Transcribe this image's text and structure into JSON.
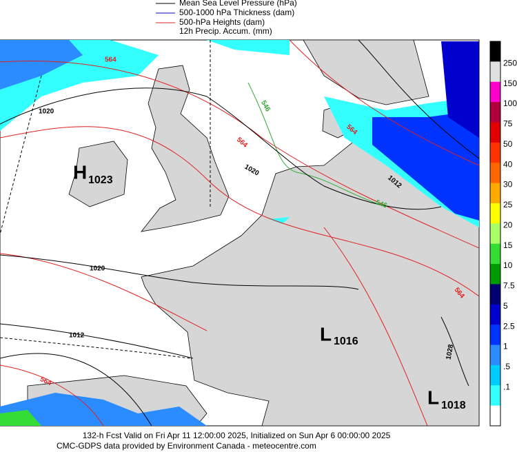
{
  "legend": [
    "Mean Sea Level Pressure (hPa)",
    "500-1000 hPa Thickness (dam)",
    "500-hPa Heights (dam)",
    "12h Precip. Accum. (mm)"
  ],
  "contour_labels": {
    "heights": [
      "564",
      "564",
      "564",
      "564",
      "564"
    ],
    "thickness": [
      "546",
      "546"
    ],
    "pressure": [
      "1020",
      "1020",
      "1020",
      "1012",
      "1012",
      "1028"
    ]
  },
  "centers": [
    {
      "letter": "H",
      "value": "1023"
    },
    {
      "letter": "L",
      "value": "1016"
    },
    {
      "letter": "L",
      "value": "1018"
    }
  ],
  "colorbar": {
    "colors": [
      "#000000",
      "#e0e0e0",
      "#ff00cc",
      "#b0003a",
      "#e00000",
      "#ff3300",
      "#ff6600",
      "#ffaa00",
      "#ffff00",
      "#a8ff66",
      "#33dd33",
      "#009900",
      "#000070",
      "#0000cc",
      "#0033ff",
      "#2a8cff",
      "#00ccff",
      "#33ffff",
      "#ffffff"
    ],
    "labels": [
      "250",
      "150",
      "100",
      "75",
      "50",
      "40",
      "30",
      "25",
      "20",
      "15",
      "10",
      "7.5",
      "5",
      "2.5",
      "1",
      ".5",
      ".1"
    ]
  },
  "footer": [
    "132-h Fcst Valid on Fri Apr 11 12:00:00 2025, Initialized on Sun Apr  6 00:00:00 2025",
    "CMC-GDPS data provided by Environment Canada - meteocentre.com"
  ]
}
